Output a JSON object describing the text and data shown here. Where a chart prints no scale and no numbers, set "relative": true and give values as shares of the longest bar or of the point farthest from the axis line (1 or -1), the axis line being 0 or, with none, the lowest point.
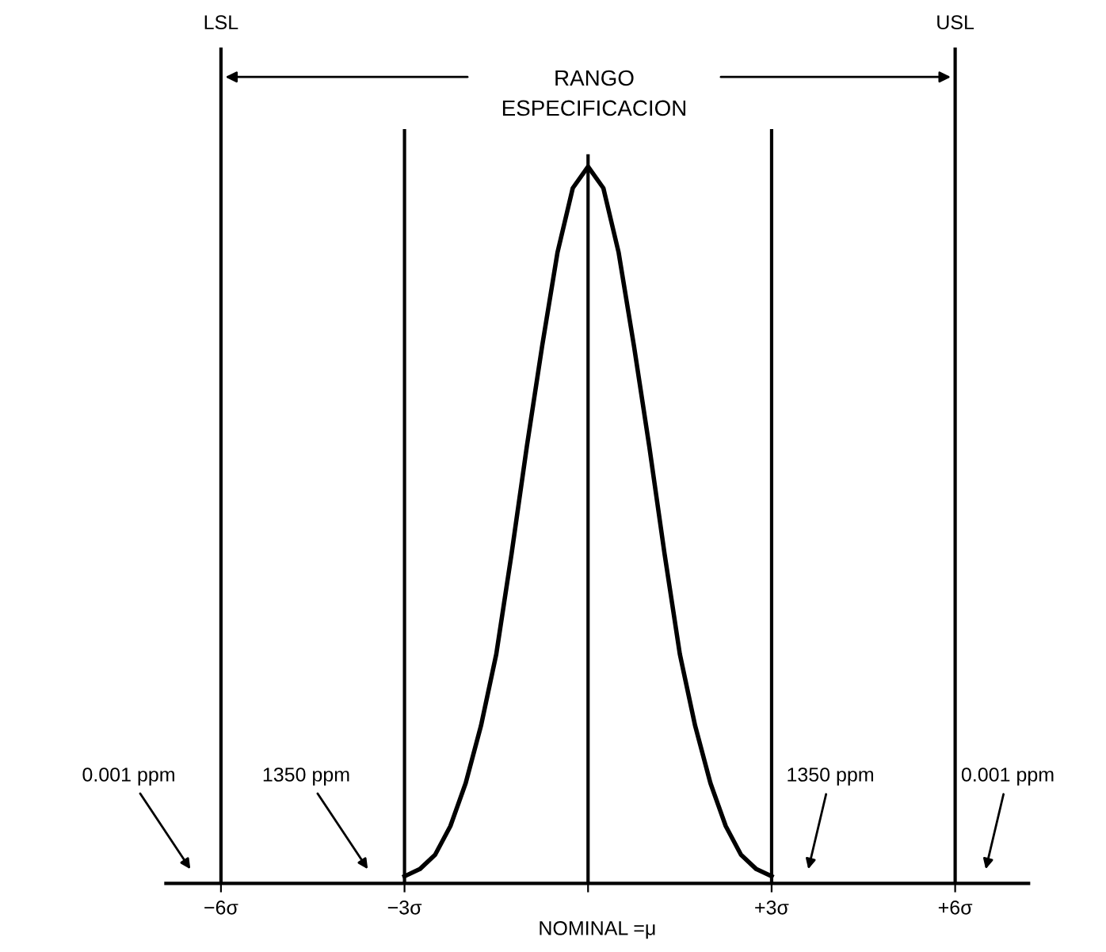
{
  "chart_data": {
    "type": "line",
    "relative": true,
    "xlabel": "NOMINAL =μ",
    "x": [
      -3,
      -2.75,
      -2.5,
      -2.25,
      -2,
      -1.75,
      -1.5,
      -1.25,
      -1,
      -0.75,
      -0.5,
      -0.25,
      0,
      0.25,
      0.5,
      0.75,
      1,
      1.25,
      1.5,
      1.75,
      2,
      2.25,
      2.5,
      2.75,
      3
    ],
    "series": [
      {
        "color": "#000000",
        "values": [
          0.01,
          0.02,
          0.04,
          0.08,
          0.14,
          0.22,
          0.32,
          0.46,
          0.61,
          0.75,
          0.88,
          0.97,
          1,
          0.97,
          0.88,
          0.75,
          0.61,
          0.46,
          0.32,
          0.22,
          0.14,
          0.08,
          0.04,
          0.02,
          0.01
        ]
      }
    ],
    "xlim": [
      -6.9,
      7.2
    ],
    "xticks": [
      {
        "value": -6,
        "label": "−6σ"
      },
      {
        "value": -3,
        "label": "−3σ"
      },
      {
        "value": 0,
        "label": null
      },
      {
        "value": 3,
        "label": "+3σ"
      },
      {
        "value": 6,
        "label": "+6σ"
      }
    ],
    "ref_lines": [
      {
        "axis": "x",
        "value": -6,
        "label": "LSL"
      },
      {
        "axis": "x",
        "value": -3
      },
      {
        "axis": "x",
        "value": 0
      },
      {
        "axis": "x",
        "value": 3
      },
      {
        "axis": "x",
        "value": 6,
        "label": "USL"
      }
    ],
    "annotations": [
      "RANGO\nESPECIFICACION",
      "0.001 ppm",
      "1350 ppm",
      "1350 ppm",
      "0.001 ppm"
    ],
    "grid": false,
    "legend": false,
    "line_style": "solid",
    "marker": "none"
  }
}
